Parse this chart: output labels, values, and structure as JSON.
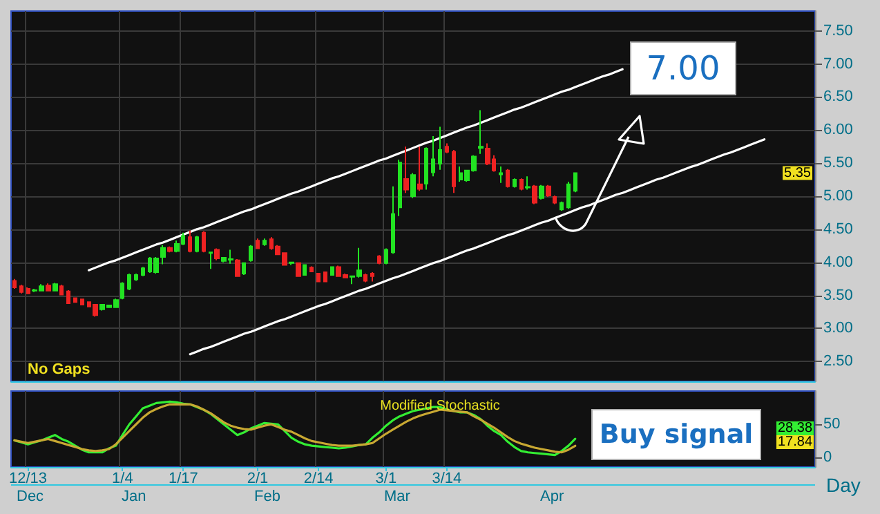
{
  "chart_data": [
    {
      "type": "candlestick",
      "annotations": [
        "No Gaps",
        "7.00",
        {
          "text": "5.35",
          "y": 5.35
        }
      ],
      "tick_labels": "y",
      "grid": true,
      "categories": [
        null,
        null,
        null,
        null,
        null,
        null,
        null,
        null,
        null,
        null,
        null,
        null,
        null,
        null,
        null,
        null,
        null,
        null,
        null,
        null,
        null,
        null,
        null,
        null,
        null,
        null,
        null,
        null,
        null,
        null,
        null,
        null,
        null,
        null,
        null,
        null,
        null,
        null,
        null,
        null,
        null,
        null,
        null,
        null,
        null,
        null,
        null,
        null,
        null,
        null,
        null,
        null,
        null,
        null,
        null,
        null,
        null,
        null,
        null,
        null,
        null,
        null,
        null,
        null,
        null,
        null,
        null,
        null,
        null,
        null,
        null,
        null,
        null,
        null,
        null,
        null,
        null,
        null,
        null,
        null,
        null,
        null,
        null,
        null,
        null,
        null,
        null,
        null,
        null,
        null,
        null,
        null,
        null,
        null,
        null,
        null,
        null,
        null,
        null,
        null,
        null,
        null,
        null,
        null,
        null,
        null,
        null,
        null,
        null,
        null,
        null,
        null,
        null,
        null,
        null,
        null,
        null,
        null,
        null
      ],
      "ylim": [
        2.2,
        7.8
      ],
      "yticks": [
        {
          "value": 2.5,
          "label": "2.50"
        },
        {
          "value": 3,
          "label": "3.00"
        },
        {
          "value": 3.5,
          "label": "3.50"
        },
        {
          "value": 4,
          "label": "4.00"
        },
        {
          "value": 4.5,
          "label": "4.50"
        },
        {
          "value": 5,
          "label": "5.00"
        },
        {
          "value": 5.5,
          "label": "5.50"
        },
        {
          "value": 6,
          "label": "6.00"
        },
        {
          "value": 6.5,
          "label": "6.50"
        },
        {
          "value": 7,
          "label": "7.00"
        },
        {
          "value": 7.5,
          "label": "7.50"
        }
      ],
      "ohlc": [
        [
          3.72,
          3.75,
          3.6,
          3.62
        ],
        [
          3.64,
          3.66,
          3.53,
          3.55
        ],
        [
          3.6,
          3.62,
          3.52,
          3.53
        ],
        [
          3.57,
          3.6,
          3.55,
          3.58
        ],
        [
          3.57,
          3.67,
          3.56,
          3.64
        ],
        [
          3.65,
          3.68,
          3.56,
          3.57
        ],
        [
          3.57,
          3.69,
          3.56,
          3.67
        ],
        [
          3.64,
          3.66,
          3.5,
          3.51
        ],
        [
          3.56,
          3.58,
          3.37,
          3.38
        ],
        [
          3.46,
          3.47,
          3.39,
          3.4
        ],
        [
          3.44,
          3.45,
          3.35,
          3.36
        ],
        [
          3.4,
          3.41,
          3.32,
          3.33
        ],
        [
          3.36,
          3.37,
          3.18,
          3.2
        ],
        [
          3.29,
          3.37,
          3.27,
          3.36
        ],
        [
          3.32,
          3.36,
          3.31,
          3.35
        ],
        [
          3.32,
          3.45,
          3.31,
          3.43
        ],
        [
          3.46,
          3.7,
          3.44,
          3.68
        ],
        [
          3.6,
          3.83,
          3.58,
          3.81
        ],
        [
          3.74,
          3.83,
          3.72,
          3.81
        ],
        [
          3.81,
          3.93,
          3.79,
          3.91
        ],
        [
          3.86,
          4.08,
          3.84,
          4.06
        ],
        [
          3.85,
          4.08,
          3.83,
          4.06
        ],
        [
          4.08,
          4.26,
          3.97,
          4.22
        ],
        [
          4.22,
          4.24,
          4.15,
          4.17
        ],
        [
          4.17,
          4.33,
          4.15,
          4.28
        ],
        [
          4.28,
          4.45,
          4.26,
          4.4
        ],
        [
          4.38,
          4.48,
          4.15,
          4.17
        ],
        [
          4.17,
          4.4,
          4.15,
          4.38
        ],
        [
          4.45,
          4.47,
          4.15,
          4.17
        ],
        [
          4.14,
          4.16,
          3.9,
          4.15
        ],
        [
          4.19,
          4.21,
          4.03,
          4.06
        ],
        [
          4.02,
          4.08,
          4.0,
          4.07
        ],
        [
          4.04,
          4.19,
          3.98,
          4.05
        ],
        [
          4.03,
          4.05,
          3.78,
          3.79
        ],
        [
          3.83,
          4.0,
          3.81,
          3.99
        ],
        [
          4.03,
          4.26,
          4.01,
          4.24
        ],
        [
          4.33,
          4.36,
          4.2,
          4.21
        ],
        [
          4.27,
          4.36,
          4.25,
          4.33
        ],
        [
          4.35,
          4.38,
          4.19,
          4.21
        ],
        [
          4.24,
          4.26,
          4.11,
          4.12
        ],
        [
          4.14,
          4.15,
          3.95,
          3.96
        ],
        [
          3.99,
          4.01,
          3.96,
          4.0
        ],
        [
          3.99,
          4.0,
          3.78,
          3.79
        ],
        [
          3.81,
          3.97,
          3.8,
          3.96
        ],
        [
          3.92,
          3.94,
          3.85,
          3.86
        ],
        [
          3.83,
          3.84,
          3.7,
          3.71
        ],
        [
          3.85,
          3.86,
          3.7,
          3.71
        ],
        [
          3.81,
          3.94,
          3.8,
          3.93
        ],
        [
          3.93,
          3.95,
          3.78,
          3.79
        ],
        [
          3.81,
          3.83,
          3.76,
          3.77
        ],
        [
          3.78,
          3.8,
          3.67,
          3.79
        ],
        [
          3.79,
          4.22,
          3.77,
          3.88
        ],
        [
          3.81,
          3.83,
          3.7,
          3.72
        ],
        [
          3.83,
          3.85,
          3.71,
          3.79
        ],
        [
          4.09,
          4.11,
          3.97,
          3.99
        ],
        [
          3.99,
          4.21,
          3.97,
          4.19
        ],
        [
          4.15,
          5.15,
          4.13,
          4.73
        ],
        [
          4.83,
          5.55,
          4.7,
          5.51
        ],
        [
          5.26,
          5.75,
          5.05,
          5.1
        ],
        [
          5.0,
          5.35,
          4.97,
          5.32
        ],
        [
          5.18,
          5.75,
          5.08,
          5.11
        ],
        [
          5.19,
          5.74,
          5.1,
          5.72
        ],
        [
          5.36,
          5.91,
          5.3,
          5.56
        ],
        [
          5.49,
          6.05,
          5.4,
          5.7
        ],
        [
          5.75,
          5.8,
          5.65,
          5.67
        ],
        [
          5.67,
          5.7,
          5.05,
          5.15
        ],
        [
          5.25,
          5.45,
          5.22,
          5.35
        ],
        [
          5.24,
          5.4,
          5.22,
          5.39
        ],
        [
          5.39,
          5.62,
          5.37,
          5.6
        ],
        [
          5.73,
          6.3,
          5.64,
          5.75
        ],
        [
          5.72,
          5.8,
          5.47,
          5.49
        ],
        [
          5.56,
          5.62,
          5.37,
          5.39
        ],
        [
          5.33,
          5.45,
          5.2,
          5.35
        ],
        [
          5.39,
          5.41,
          5.13,
          5.15
        ],
        [
          5.15,
          5.27,
          5.13,
          5.25
        ],
        [
          5.25,
          5.27,
          5.09,
          5.11
        ],
        [
          5.13,
          5.3,
          5.1,
          5.14
        ],
        [
          5.15,
          5.17,
          4.88,
          4.9
        ],
        [
          4.97,
          5.17,
          4.95,
          5.15
        ],
        [
          5.15,
          5.17,
          4.99,
          5.01
        ],
        [
          4.99,
          5.01,
          4.88,
          4.9
        ],
        [
          4.8,
          4.92,
          4.78,
          4.9
        ],
        [
          4.83,
          5.22,
          4.81,
          5.18
        ],
        [
          5.08,
          5.36,
          5.06,
          5.35
        ],
        null,
        null,
        null,
        null,
        null,
        null,
        null,
        null,
        null,
        null,
        null,
        null,
        null,
        null,
        null,
        null,
        null,
        null,
        null,
        null,
        null,
        null,
        null,
        null,
        null,
        null,
        null,
        null,
        null,
        null,
        null,
        null,
        null,
        null,
        null
      ],
      "colors": [
        "#ee2222",
        "#ee2222",
        "#ee2222",
        "#22e322",
        "#22e322",
        "#ee2222",
        "#22e322",
        "#ee2222",
        "#ee2222",
        "#ee2222",
        "#ee2222",
        "#ee2222",
        "#ee2222",
        "#22e322",
        "#22e322",
        "#22e322",
        "#22e322",
        "#22e322",
        "#22e322",
        "#22e322",
        "#22e322",
        "#22e322",
        "#22e322",
        "#ee2222",
        "#22e322",
        "#22e322",
        "#ee2222",
        "#22e322",
        "#ee2222",
        "#22e322",
        "#ee2222",
        "#22e322",
        "#22e322",
        "#ee2222",
        "#22e322",
        "#22e322",
        "#ee2222",
        "#22e322",
        "#ee2222",
        "#ee2222",
        "#ee2222",
        "#22e322",
        "#ee2222",
        "#22e322",
        "#ee2222",
        "#ee2222",
        "#ee2222",
        "#22e322",
        "#ee2222",
        "#ee2222",
        "#22e322",
        "#22e322",
        "#ee2222",
        "#ee2222",
        "#ee2222",
        "#22e322",
        "#22e322",
        "#22e322",
        "#ee2222",
        "#22e322",
        "#ee2222",
        "#22e322",
        "#22e322",
        "#22e322",
        "#ee2222",
        "#ee2222",
        "#22e322",
        "#22e322",
        "#22e322",
        "#22e322",
        "#ee2222",
        "#ee2222",
        "#22e322",
        "#ee2222",
        "#22e322",
        "#ee2222",
        "#22e322",
        "#ee2222",
        "#22e322",
        "#ee2222",
        "#ee2222",
        "#22e322",
        "#22e322",
        "#22e322",
        null,
        null,
        null,
        null,
        null,
        null,
        null,
        null,
        null,
        null,
        null,
        null,
        null,
        null,
        null,
        null,
        null,
        null,
        null,
        null,
        null,
        null,
        null,
        null,
        null,
        null,
        null,
        null,
        null,
        null,
        null,
        null,
        null,
        null,
        null
      ],
      "series": [
        {
          "type": "line",
          "color": "#ffffff",
          "values": [
            null,
            null,
            null,
            null,
            null,
            null,
            null,
            null,
            null,
            null,
            null,
            3.88,
            3.92,
            3.96,
            4.0,
            4.03,
            4.07,
            4.11,
            4.15,
            4.19,
            4.23,
            4.27,
            4.3,
            4.34,
            4.38,
            4.42,
            4.46,
            4.5,
            4.53,
            4.57,
            4.61,
            4.65,
            4.69,
            4.73,
            4.77,
            4.8,
            4.84,
            4.88,
            4.92,
            4.96,
            5.0,
            5.04,
            5.07,
            5.11,
            5.15,
            5.19,
            5.23,
            5.27,
            5.3,
            5.34,
            5.38,
            5.42,
            5.46,
            5.5,
            5.54,
            5.57,
            5.61,
            5.65,
            5.69,
            5.73,
            5.77,
            5.81,
            5.84,
            5.88,
            5.92,
            5.96,
            6.0,
            6.04,
            6.07,
            6.11,
            6.15,
            6.19,
            6.23,
            6.27,
            6.31,
            6.34,
            6.38,
            6.42,
            6.46,
            6.5,
            6.54,
            6.58,
            6.61,
            6.65,
            6.69,
            6.73,
            6.77,
            6.81,
            6.84,
            6.88,
            6.92,
            null,
            null,
            null,
            null,
            null,
            null,
            null,
            null,
            null,
            null,
            null,
            null,
            null,
            null,
            null,
            null,
            null,
            null,
            null,
            null,
            null,
            null,
            null,
            null,
            null,
            null,
            null,
            null
          ]
        },
        {
          "type": "line",
          "color": "#ffffff",
          "values": [
            null,
            null,
            null,
            null,
            null,
            null,
            null,
            null,
            null,
            null,
            null,
            null,
            null,
            null,
            null,
            null,
            null,
            null,
            null,
            null,
            null,
            null,
            null,
            null,
            null,
            null,
            2.61,
            2.65,
            2.69,
            2.72,
            2.76,
            2.8,
            2.84,
            2.88,
            2.92,
            2.95,
            2.99,
            3.03,
            3.07,
            3.11,
            3.14,
            3.18,
            3.22,
            3.26,
            3.3,
            3.34,
            3.37,
            3.41,
            3.45,
            3.49,
            3.53,
            3.57,
            3.6,
            3.64,
            3.68,
            3.72,
            3.76,
            3.79,
            3.83,
            3.87,
            3.91,
            3.95,
            3.99,
            4.02,
            4.06,
            4.1,
            4.14,
            4.18,
            4.21,
            4.25,
            4.29,
            4.33,
            4.37,
            4.41,
            4.44,
            4.48,
            4.52,
            4.56,
            4.6,
            4.63,
            4.67,
            4.71,
            4.75,
            4.79,
            4.83,
            4.86,
            4.9,
            4.94,
            4.98,
            5.02,
            5.05,
            5.09,
            5.13,
            5.17,
            5.21,
            5.25,
            5.28,
            5.32,
            5.36,
            5.4,
            5.44,
            5.47,
            5.51,
            5.55,
            5.59,
            5.63,
            5.66,
            5.7,
            5.74,
            5.78,
            5.82,
            5.86,
            null,
            null,
            null,
            null,
            null,
            null,
            null
          ]
        }
      ],
      "marker": "none"
    },
    {
      "type": "line",
      "title": "Modified Stochastic",
      "annotations": [
        "Buy signal",
        "Day",
        "Dec",
        "Jan",
        "Feb",
        "Mar",
        "Apr",
        "28.38",
        "17.84"
      ],
      "categories": [
        null,
        null,
        "12/13",
        null,
        null,
        null,
        null,
        null,
        null,
        null,
        null,
        null,
        null,
        null,
        null,
        null,
        "1/4",
        null,
        null,
        null,
        null,
        null,
        null,
        null,
        null,
        "1/17",
        null,
        null,
        null,
        null,
        null,
        null,
        null,
        null,
        null,
        null,
        "2/1",
        null,
        null,
        null,
        null,
        null,
        null,
        null,
        null,
        "2/14",
        null,
        null,
        null,
        null,
        null,
        null,
        null,
        null,
        null,
        "3/1",
        null,
        null,
        null,
        null,
        null,
        null,
        null,
        null,
        "3/14",
        null,
        null,
        null,
        null,
        null,
        null,
        null,
        null,
        null,
        null,
        null,
        null,
        null,
        null,
        null,
        null,
        null,
        null,
        null,
        null,
        null,
        null,
        null,
        null,
        null,
        null,
        null,
        null,
        null,
        null,
        null,
        null,
        null,
        null,
        null,
        null,
        null,
        null,
        null,
        null,
        null,
        null,
        null,
        null,
        null,
        null,
        null,
        null,
        null,
        null,
        null,
        null,
        null,
        null
      ],
      "ylim": [
        -14,
        100
      ],
      "yticks": [
        0,
        50
      ],
      "grid": "x",
      "marker": "none",
      "series": [
        {
          "color": "#33ee33",
          "values": [
            26,
            23,
            20,
            23,
            26,
            30,
            34,
            28,
            24,
            18,
            12,
            8,
            8,
            8,
            14,
            18,
            34,
            50,
            62,
            74,
            78,
            82,
            83,
            84,
            83,
            81,
            80,
            76,
            72,
            66,
            58,
            50,
            42,
            34,
            38,
            44,
            48,
            52,
            51,
            50,
            40,
            30,
            24,
            20,
            18,
            17,
            16,
            15,
            14,
            15,
            17,
            19,
            20,
            30,
            38,
            48,
            56,
            62,
            66,
            70,
            72,
            74,
            76,
            76,
            72,
            70,
            68,
            68,
            64,
            58,
            48,
            40,
            34,
            24,
            16,
            10,
            8,
            7,
            6,
            5,
            4,
            10,
            18,
            28.38,
            null,
            null,
            null,
            null,
            null,
            null,
            null,
            null,
            null,
            null,
            null,
            null,
            null,
            null,
            null,
            null,
            null,
            null,
            null,
            null,
            null,
            null,
            null,
            null,
            null,
            null,
            null,
            null,
            null,
            null,
            null,
            null,
            null,
            null,
            null
          ]
        },
        {
          "color": "#c8a832",
          "values": [
            26,
            24,
            22,
            24,
            26,
            28,
            25,
            22,
            19,
            16,
            13,
            11,
            10,
            11,
            13,
            20,
            30,
            40,
            50,
            60,
            68,
            73,
            77,
            80,
            80,
            80,
            80,
            77,
            72,
            67,
            60,
            53,
            48,
            45,
            43,
            42,
            45,
            48,
            50,
            46,
            42,
            39,
            34,
            29,
            25,
            23,
            21,
            19,
            18,
            18,
            18,
            19,
            20,
            22,
            29,
            36,
            42,
            48,
            54,
            59,
            63,
            66,
            69,
            72,
            71,
            70,
            69,
            68,
            62,
            57,
            51,
            45,
            38,
            31,
            25,
            21,
            18,
            15,
            13,
            11,
            9,
            8,
            12,
            17.84,
            null,
            null,
            null,
            null,
            null,
            null,
            null,
            null,
            null,
            null,
            null,
            null,
            null,
            null,
            null,
            null,
            null,
            null,
            null,
            null,
            null,
            null,
            null,
            null,
            null,
            null,
            null,
            null,
            null,
            null,
            null,
            null,
            null,
            null,
            null
          ]
        }
      ]
    }
  ]
}
